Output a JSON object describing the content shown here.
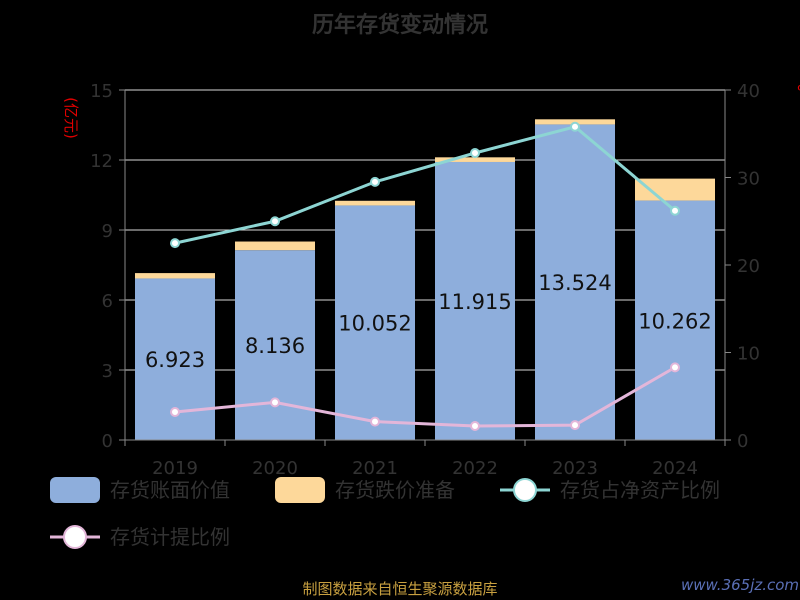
{
  "title": "历年存货变动情况",
  "left_axis_unit": "(亿元)",
  "right_axis_unit": "%",
  "source": "制图数据来自恒生聚源数据库",
  "watermark": "www.365jz.com",
  "legend": [
    {
      "label": "存货账面价值",
      "kind": "bar"
    },
    {
      "label": "存货跌价准备",
      "kind": "bar"
    },
    {
      "label": "存货占净资产比例",
      "kind": "line"
    },
    {
      "label": "存货计提比例",
      "kind": "line"
    }
  ],
  "colors": {
    "book_value": "#8eaedc",
    "impairment": "#fdd89a",
    "ratio_net_assets": "#8dd5d3",
    "provision_ratio": "#e3b6d9",
    "grid": "#d9d9d9",
    "axis": "#888888",
    "text": "#333333"
  },
  "chart_data": {
    "type": "bar",
    "categories": [
      "2019",
      "2020",
      "2021",
      "2022",
      "2023",
      "2024"
    ],
    "x_ticks": [
      "2019",
      "2020",
      "2021",
      "2022",
      "2023",
      "2024"
    ],
    "left_ticks": [
      "0",
      "3",
      "6",
      "9",
      "12",
      "15"
    ],
    "right_ticks": [
      "0",
      "10",
      "20",
      "30",
      "40"
    ],
    "ylim": [
      0,
      15
    ],
    "y2lim": [
      0,
      40
    ],
    "grid": true,
    "legend_position": "bottom",
    "series": [
      {
        "name": "存货账面价值",
        "kind": "bar",
        "stack": "a",
        "axis": "left",
        "values": [
          6.923,
          8.136,
          10.052,
          11.915,
          13.524,
          10.262
        ],
        "labels": [
          "6.923",
          "8.136",
          "10.052",
          "11.915",
          "13.524",
          "10.262"
        ]
      },
      {
        "name": "存货跌价准备",
        "kind": "bar",
        "stack": "a",
        "axis": "left",
        "values": [
          0.23,
          0.37,
          0.2,
          0.2,
          0.22,
          0.94
        ]
      },
      {
        "name": "存货占净资产比例",
        "kind": "line",
        "axis": "right",
        "values": [
          22.5,
          25.0,
          29.5,
          32.8,
          35.8,
          26.2
        ]
      },
      {
        "name": "存货计提比例",
        "kind": "line",
        "axis": "right",
        "values": [
          3.2,
          4.3,
          2.1,
          1.6,
          1.7,
          8.3
        ]
      }
    ]
  }
}
